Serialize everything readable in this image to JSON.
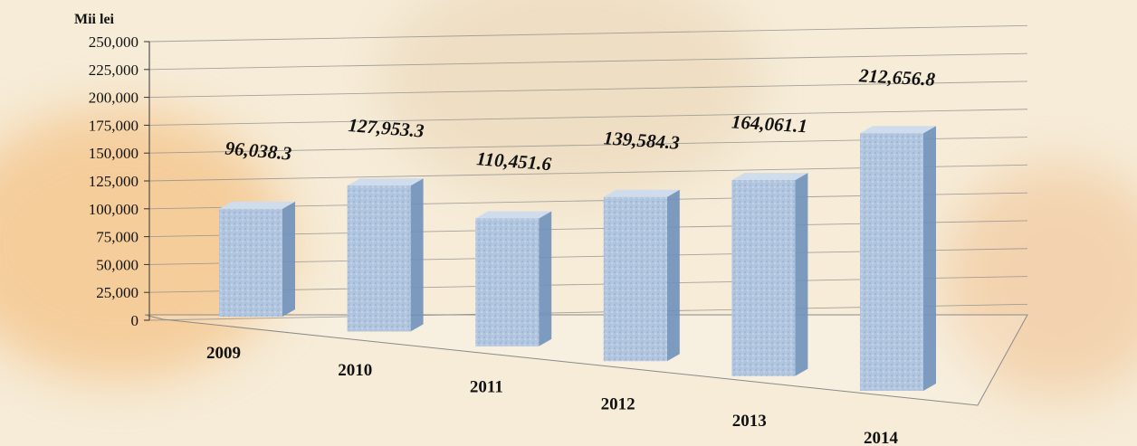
{
  "chart_data": {
    "type": "bar",
    "unit_label": "Mii lei",
    "categories": [
      "2009",
      "2010",
      "2011",
      "2012",
      "2013",
      "2014"
    ],
    "values": [
      96038.3,
      127953.3,
      110451.6,
      139584.3,
      164061.1,
      212656.8
    ],
    "value_labels": [
      "96,038.3",
      "127,953.3",
      "110,451.6",
      "139,584.3",
      "164,061.1",
      "212,656.8"
    ],
    "y_ticks": [
      "0",
      "25,000",
      "50,000",
      "75,000",
      "100,000",
      "125,000",
      "150,000",
      "175,000",
      "200,000",
      "225,000",
      "250,000"
    ],
    "ylim": [
      0,
      250000
    ],
    "grid": true,
    "three_d": true,
    "colors": {
      "bar_light": "#cfdcec",
      "bar_mid": "#9fbad8",
      "bar_dark": "#6f91bb",
      "grid": "#8a8a8a",
      "background": "#f6ecd8"
    }
  }
}
